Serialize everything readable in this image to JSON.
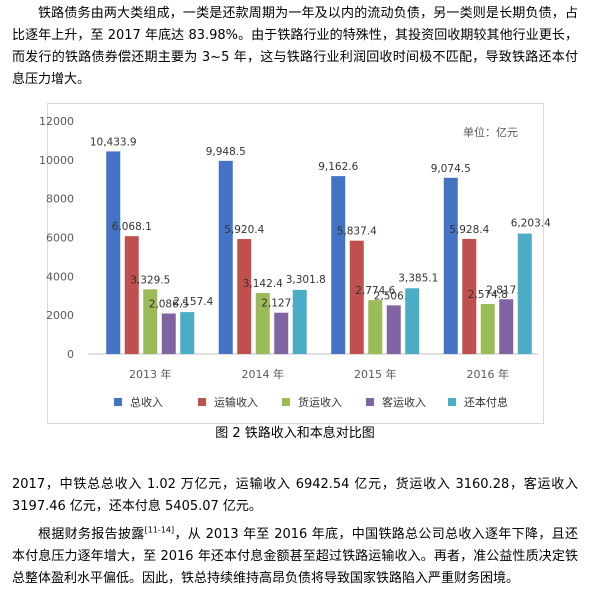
{
  "paragraphs": {
    "p1": "铁路债务由两大类组成，一类是还款周期为一年及以内的流动负债，另一类则是长期负债，占比逐年上升，至 2017 年底达 83.98%。由于铁路行业的特殊性，其投资回收期较其他行业更长，而发行的铁路债券偿还期主要为 3~5 年，这与铁路行业利润回收时间极不匹配，导致铁路还本付息压力增大。",
    "p2": "2017，中铁总总收入 1.02 万亿元，运输收入 6942.54 亿元，货运收入 3160.28，客运收入 3197.46 亿元，还本付息 5405.07 亿元。",
    "p3_before": "根据财务报告披露",
    "p3_ref": "[11-14]",
    "p3_after": "，从 2013 年至 2016 年底，中国铁路总公司总收入逐年下降，且还本付息压力逐年增大，至 2016 年还本付息金额甚至超过铁路运输收入。再者，准公益性质决定铁总整体盈利水平偏低。因此，铁总持续维持高昂负债将导致国家铁路陷入严重财务困境。"
  },
  "figure_caption": "图 2 铁路收入和本息对比图",
  "chart_data": {
    "type": "bar",
    "unit_label": "单位：亿元",
    "categories": [
      "2013 年",
      "2014 年",
      "2015 年",
      "2016 年"
    ],
    "ylim": [
      0,
      12000
    ],
    "yticks": [
      0,
      2000,
      4000,
      6000,
      8000,
      10000,
      12000
    ],
    "grid": false,
    "legend_position": "bottom",
    "series": [
      {
        "name": "总收入",
        "color": "#4472c4",
        "values": [
          10433.9,
          9948.5,
          9162.6,
          9074.5
        ]
      },
      {
        "name": "运输收入",
        "color": "#c0504d",
        "values": [
          6068.1,
          5920.4,
          5837.4,
          5928.4
        ]
      },
      {
        "name": "货运收入",
        "color": "#9bbb59",
        "values": [
          3329.5,
          3142.4,
          2774.6,
          2574.8
        ]
      },
      {
        "name": "客运收入",
        "color": "#8064a2",
        "values": [
          2086.5,
          2127.2,
          2506.3,
          2817.5
        ]
      },
      {
        "name": "还本付息",
        "color": "#4bacc6",
        "values": [
          2157.4,
          3301.8,
          3385.1,
          6203.4
        ]
      }
    ]
  }
}
